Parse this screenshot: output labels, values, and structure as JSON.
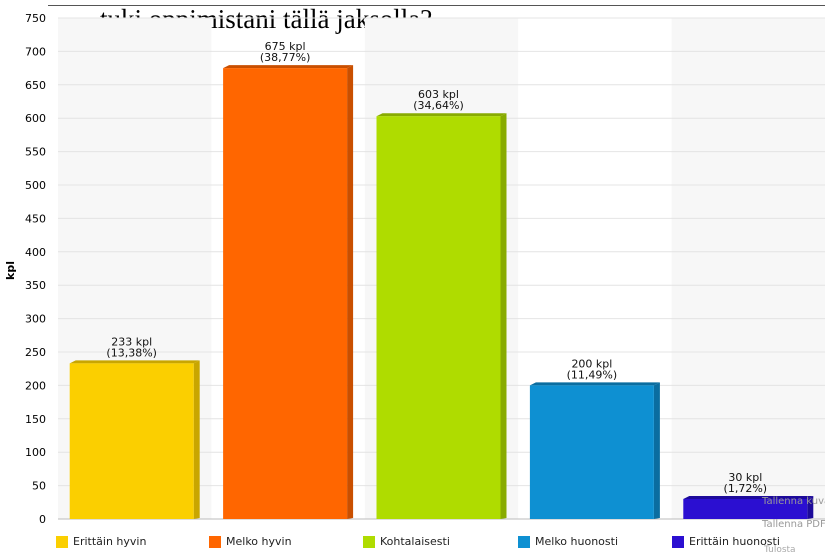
{
  "chart_data": {
    "type": "bar",
    "title": "tuki oppimistani tällä jaksolla?",
    "ylabel": "kpl",
    "ylim": [
      0,
      750
    ],
    "ytick_step": 50,
    "categories": [
      "Erittäin hyvin",
      "Melko hyvin",
      "Kohtalaisesti",
      "Melko huonosti",
      "Erittäin huonosti"
    ],
    "values": [
      233,
      675,
      603,
      200,
      30
    ],
    "value_labels": [
      "233 kpl",
      "675 kpl",
      "603 kpl",
      "200 kpl",
      "30 kpl"
    ],
    "percent_labels": [
      "(13,38%)",
      "(38,77%)",
      "(34,64%)",
      "(11,49%)",
      "(1,72%)"
    ],
    "colors": [
      "#fbcf00",
      "#ff6600",
      "#afdc00",
      "#0e90d2",
      "#2b0fd1"
    ],
    "side_colors": [
      "#c9a600",
      "#c94f00",
      "#88ab00",
      "#0a6da0",
      "#1d0a9a"
    ],
    "legend_placement": "bottom",
    "grid": true
  },
  "watermarks": {
    "a": "Tallenna kuva",
    "b": "Tallenna PDF",
    "c": "Tulosta"
  }
}
